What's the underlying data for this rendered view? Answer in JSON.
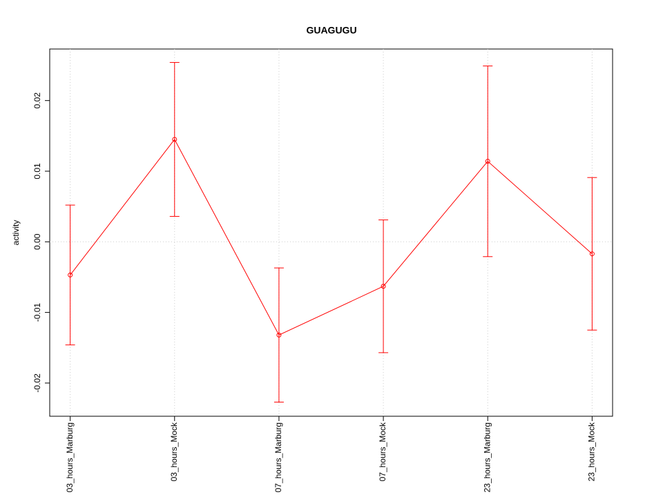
{
  "chart_data": {
    "type": "line",
    "title": "GUAGUGU",
    "y_label": "activity",
    "categories": [
      "03_hours_Marburg",
      "03_hours_Mock",
      "07_hours_Marburg",
      "07_hours_Mock",
      "23_hours_Marburg",
      "23_hours_Mock"
    ],
    "series": [
      {
        "color": "#ff0000",
        "values": [
          -0.0047,
          0.0145,
          -0.0132,
          -0.0063,
          0.0114,
          -0.0017
        ],
        "errors": [
          0.0099,
          0.0109,
          0.0095,
          0.0094,
          0.0135,
          0.0108
        ]
      }
    ],
    "ylim": [
      -0.0247,
      0.0273
    ],
    "yticks": [
      -0.02,
      -0.01,
      {
        "value": 0,
        "label": "0.00"
      },
      0.01,
      0.02
    ],
    "x_grid": true,
    "reference_line": 0
  }
}
